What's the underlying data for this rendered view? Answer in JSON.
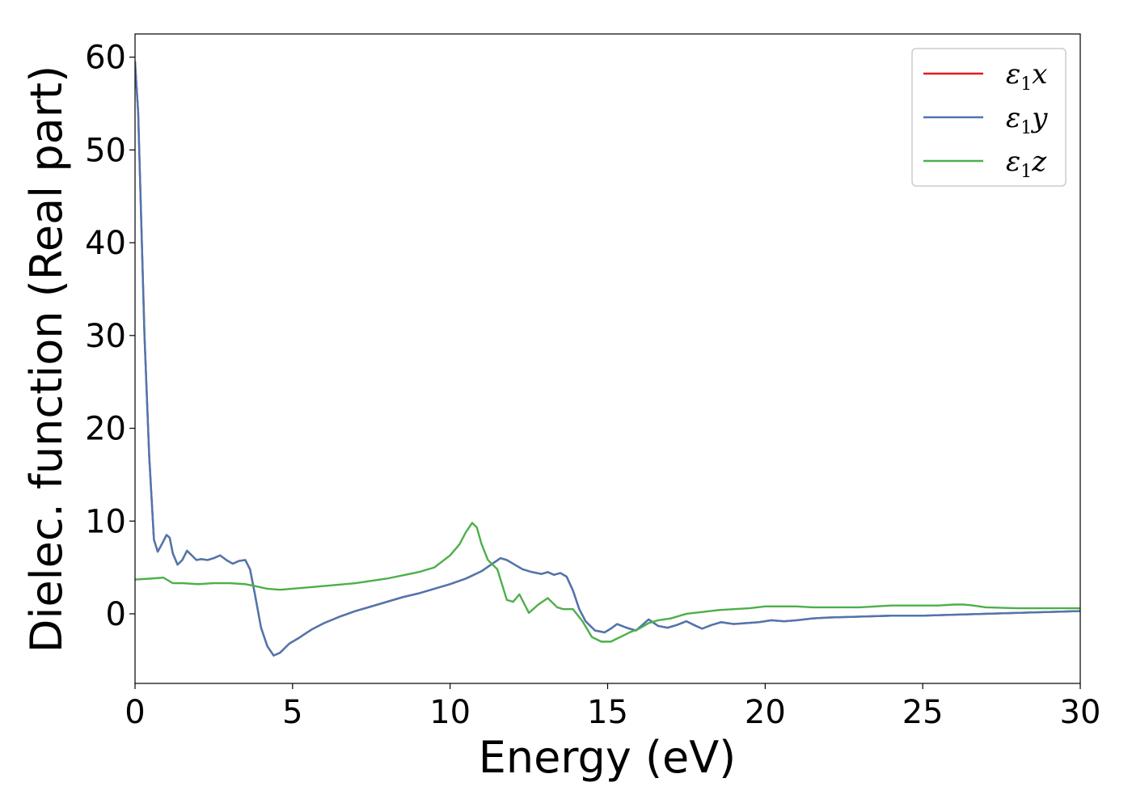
{
  "chart_data": {
    "type": "line",
    "xlabel": "Energy (eV)",
    "ylabel": "Dielec. function (Real part)",
    "xlim": [
      0,
      30
    ],
    "ylim": [
      -7.5,
      62.5
    ],
    "xticks": [
      0,
      5,
      10,
      15,
      20,
      25,
      30
    ],
    "yticks": [
      0,
      10,
      20,
      30,
      40,
      50,
      60
    ],
    "grid": false,
    "legend_position": "top-right",
    "series": [
      {
        "name": "ε1x",
        "legend_main": "ε",
        "legend_sub": "1",
        "legend_tail": "x",
        "color": "#e41a1c",
        "x": [
          0,
          0.1,
          0.2,
          0.3,
          0.45,
          0.6,
          0.72,
          0.85,
          1.0,
          1.1,
          1.2,
          1.35,
          1.5,
          1.65,
          1.8,
          1.95,
          2.1,
          2.3,
          2.5,
          2.7,
          2.9,
          3.1,
          3.3,
          3.5,
          3.65,
          3.8,
          4.0,
          4.2,
          4.4,
          4.6,
          4.9,
          5.2,
          5.6,
          6.0,
          6.5,
          7.0,
          7.5,
          8.0,
          8.5,
          9.0,
          9.5,
          10.0,
          10.5,
          11.0,
          11.3,
          11.6,
          11.8,
          12.0,
          12.3,
          12.6,
          12.9,
          13.1,
          13.3,
          13.5,
          13.7,
          13.9,
          14.1,
          14.3,
          14.6,
          14.9,
          15.1,
          15.3,
          15.6,
          15.9,
          16.1,
          16.3,
          16.6,
          16.9,
          17.2,
          17.5,
          17.8,
          18.0,
          18.3,
          18.6,
          19.0,
          19.4,
          19.8,
          20.2,
          20.6,
          21.0,
          21.5,
          22.0,
          23.0,
          24.0,
          25.0,
          26.0,
          27.0,
          28.0,
          29.0,
          30.0
        ],
        "y": [
          59.5,
          54,
          42,
          30,
          17,
          8,
          6.7,
          7.5,
          8.5,
          8.2,
          6.5,
          5.3,
          5.8,
          6.8,
          6.3,
          5.8,
          5.9,
          5.8,
          6.0,
          6.3,
          5.8,
          5.4,
          5.7,
          5.8,
          4.8,
          2.2,
          -1.5,
          -3.5,
          -4.5,
          -4.2,
          -3.2,
          -2.6,
          -1.7,
          -1.0,
          -0.3,
          0.3,
          0.8,
          1.3,
          1.8,
          2.2,
          2.7,
          3.2,
          3.8,
          4.6,
          5.3,
          6.0,
          5.8,
          5.4,
          4.8,
          4.5,
          4.3,
          4.5,
          4.2,
          4.4,
          4.0,
          2.5,
          0.5,
          -0.8,
          -1.8,
          -2.0,
          -1.6,
          -1.1,
          -1.5,
          -1.8,
          -1.2,
          -0.6,
          -1.3,
          -1.5,
          -1.2,
          -0.8,
          -1.3,
          -1.6,
          -1.2,
          -0.9,
          -1.1,
          -1.0,
          -0.9,
          -0.7,
          -0.8,
          -0.7,
          -0.5,
          -0.4,
          -0.3,
          -0.2,
          -0.2,
          -0.1,
          0,
          0.1,
          0.2,
          0.3
        ]
      },
      {
        "name": "ε1y",
        "legend_main": "ε",
        "legend_sub": "1",
        "legend_tail": "y",
        "color": "#4a78b0",
        "x": [
          0,
          0.1,
          0.2,
          0.3,
          0.45,
          0.6,
          0.72,
          0.85,
          1.0,
          1.1,
          1.2,
          1.35,
          1.5,
          1.65,
          1.8,
          1.95,
          2.1,
          2.3,
          2.5,
          2.7,
          2.9,
          3.1,
          3.3,
          3.5,
          3.65,
          3.8,
          4.0,
          4.2,
          4.4,
          4.6,
          4.9,
          5.2,
          5.6,
          6.0,
          6.5,
          7.0,
          7.5,
          8.0,
          8.5,
          9.0,
          9.5,
          10.0,
          10.5,
          11.0,
          11.3,
          11.6,
          11.8,
          12.0,
          12.3,
          12.6,
          12.9,
          13.1,
          13.3,
          13.5,
          13.7,
          13.9,
          14.1,
          14.3,
          14.6,
          14.9,
          15.1,
          15.3,
          15.6,
          15.9,
          16.1,
          16.3,
          16.6,
          16.9,
          17.2,
          17.5,
          17.8,
          18.0,
          18.3,
          18.6,
          19.0,
          19.4,
          19.8,
          20.2,
          20.6,
          21.0,
          21.5,
          22.0,
          23.0,
          24.0,
          25.0,
          26.0,
          27.0,
          28.0,
          29.0,
          30.0
        ],
        "y": [
          59.5,
          54,
          42,
          30,
          17,
          8,
          6.7,
          7.5,
          8.5,
          8.2,
          6.5,
          5.3,
          5.8,
          6.8,
          6.3,
          5.8,
          5.9,
          5.8,
          6.0,
          6.3,
          5.8,
          5.4,
          5.7,
          5.8,
          4.8,
          2.2,
          -1.5,
          -3.5,
          -4.5,
          -4.2,
          -3.2,
          -2.6,
          -1.7,
          -1.0,
          -0.3,
          0.3,
          0.8,
          1.3,
          1.8,
          2.2,
          2.7,
          3.2,
          3.8,
          4.6,
          5.3,
          6.0,
          5.8,
          5.4,
          4.8,
          4.5,
          4.3,
          4.5,
          4.2,
          4.4,
          4.0,
          2.5,
          0.5,
          -0.8,
          -1.8,
          -2.0,
          -1.6,
          -1.1,
          -1.5,
          -1.8,
          -1.2,
          -0.6,
          -1.3,
          -1.5,
          -1.2,
          -0.8,
          -1.3,
          -1.6,
          -1.2,
          -0.9,
          -1.1,
          -1.0,
          -0.9,
          -0.7,
          -0.8,
          -0.7,
          -0.5,
          -0.4,
          -0.3,
          -0.2,
          -0.2,
          -0.1,
          0,
          0.1,
          0.2,
          0.3
        ]
      },
      {
        "name": "ε1z",
        "legend_main": "ε",
        "legend_sub": "1",
        "legend_tail": "z",
        "color": "#4daf4a",
        "x": [
          0,
          0.5,
          0.9,
          1.0,
          1.2,
          1.5,
          2.0,
          2.5,
          3.0,
          3.5,
          3.8,
          4.2,
          4.6,
          5.0,
          6.0,
          7.0,
          8.0,
          9.0,
          9.5,
          10.0,
          10.3,
          10.5,
          10.7,
          10.85,
          11.0,
          11.2,
          11.5,
          11.8,
          12.0,
          12.2,
          12.5,
          12.8,
          13.1,
          13.4,
          13.6,
          13.9,
          14.2,
          14.5,
          14.8,
          15.1,
          15.4,
          15.7,
          16.0,
          16.3,
          16.6,
          17.0,
          17.5,
          18.0,
          18.5,
          19.0,
          19.5,
          20.0,
          20.5,
          21.0,
          21.5,
          22.0,
          22.5,
          23.0,
          23.5,
          24.0,
          24.5,
          25.0,
          25.5,
          26.0,
          26.3,
          26.6,
          27.0,
          28.0,
          29.0,
          30.0
        ],
        "y": [
          3.7,
          3.8,
          3.9,
          3.7,
          3.3,
          3.3,
          3.2,
          3.3,
          3.3,
          3.2,
          3.0,
          2.7,
          2.6,
          2.7,
          3.0,
          3.3,
          3.8,
          4.5,
          5.0,
          6.3,
          7.5,
          8.8,
          9.8,
          9.3,
          7.5,
          5.8,
          4.8,
          1.5,
          1.3,
          2.1,
          0.1,
          1.0,
          1.7,
          0.7,
          0.5,
          0.5,
          -0.8,
          -2.5,
          -3.0,
          -3.0,
          -2.5,
          -2.0,
          -1.6,
          -1.0,
          -0.7,
          -0.5,
          0,
          0.2,
          0.4,
          0.5,
          0.6,
          0.8,
          0.8,
          0.8,
          0.7,
          0.7,
          0.7,
          0.7,
          0.8,
          0.9,
          0.9,
          0.9,
          0.9,
          1.0,
          1.0,
          0.9,
          0.7,
          0.6,
          0.6,
          0.6
        ]
      }
    ]
  }
}
